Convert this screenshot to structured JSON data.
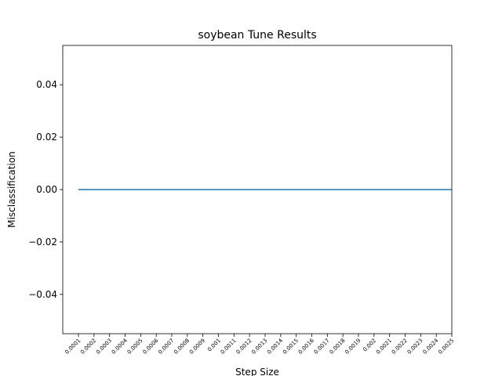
{
  "chart_data": {
    "type": "line",
    "title": "soybean Tune Results",
    "xlabel": "Step  Size",
    "ylabel": "Misclassification",
    "categories": [
      "0.0001",
      "0.0002",
      "0.0003",
      "0.0004",
      "0.0005",
      "0.0006",
      "0.0007",
      "0.0008",
      "0.0009",
      "0.001",
      "0.0011",
      "0.0012",
      "0.0013",
      "0.0014",
      "0.0015",
      "0.0016",
      "0.0017",
      "0.0018",
      "0.0019",
      "0.002",
      "0.0021",
      "0.0022",
      "0.0023",
      "0.0024",
      "0.0025"
    ],
    "series": [
      {
        "values": [
          0,
          0,
          0,
          0,
          0,
          0,
          0,
          0,
          0,
          0,
          0,
          0,
          0,
          0,
          0,
          0,
          0,
          0,
          0,
          0,
          0,
          0,
          0,
          0,
          0
        ],
        "color": "#1f77b4"
      }
    ],
    "ylim": [
      -0.055,
      0.055
    ],
    "yticks": [
      -0.04,
      -0.02,
      0.0,
      0.02,
      0.04
    ],
    "ytick_labels": [
      "−0.04",
      "−0.02",
      "0.00",
      "0.02",
      "0.04"
    ],
    "grid": false,
    "legend": false
  }
}
